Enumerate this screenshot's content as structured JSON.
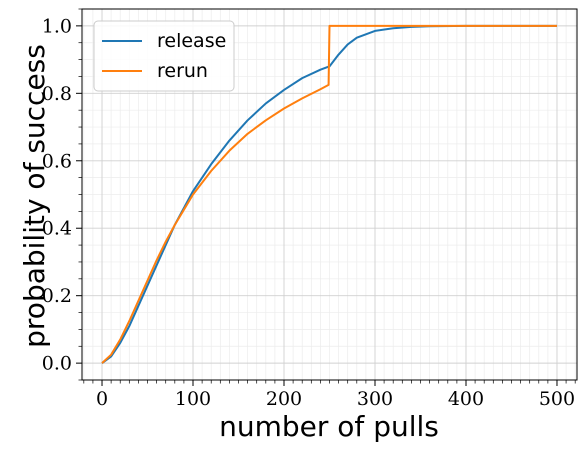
{
  "chart_data": {
    "type": "line",
    "title": "",
    "xlabel": "number of pulls",
    "ylabel": "probability of success",
    "xlim": [
      -22,
      522
    ],
    "ylim": [
      -0.05,
      1.05
    ],
    "xticks": [
      0,
      100,
      200,
      300,
      400,
      500
    ],
    "xtick_labels": [
      "0",
      "100",
      "200",
      "300",
      "400",
      "500"
    ],
    "yticks": [
      0.0,
      0.2,
      0.4,
      0.6,
      0.8,
      1.0
    ],
    "ytick_labels": [
      "0.0",
      "0.2",
      "0.4",
      "0.6",
      "0.8",
      "1.0"
    ],
    "grid": {
      "major": true,
      "minor": true
    },
    "legend": {
      "position": "top-left"
    },
    "series": [
      {
        "name": "release",
        "color": "#1f77b4",
        "x": [
          0,
          10,
          20,
          30,
          40,
          50,
          60,
          70,
          80,
          90,
          100,
          120,
          140,
          160,
          180,
          200,
          220,
          240,
          250,
          260,
          270,
          280,
          300,
          320,
          340,
          360,
          400,
          450,
          500
        ],
        "y": [
          0.0,
          0.02,
          0.06,
          0.11,
          0.17,
          0.23,
          0.29,
          0.35,
          0.41,
          0.46,
          0.51,
          0.59,
          0.66,
          0.72,
          0.77,
          0.81,
          0.845,
          0.87,
          0.88,
          0.915,
          0.945,
          0.965,
          0.985,
          0.993,
          0.997,
          0.999,
          1.0,
          1.0,
          1.0
        ]
      },
      {
        "name": "rerun",
        "color": "#ff7f0e",
        "x": [
          0,
          10,
          20,
          30,
          40,
          50,
          60,
          70,
          80,
          90,
          100,
          120,
          140,
          160,
          180,
          200,
          220,
          240,
          249,
          250,
          300,
          400,
          500
        ],
        "y": [
          0.0,
          0.025,
          0.07,
          0.125,
          0.185,
          0.245,
          0.305,
          0.36,
          0.41,
          0.455,
          0.5,
          0.57,
          0.63,
          0.68,
          0.72,
          0.755,
          0.785,
          0.812,
          0.825,
          1.0,
          1.0,
          1.0,
          1.0
        ]
      }
    ]
  }
}
